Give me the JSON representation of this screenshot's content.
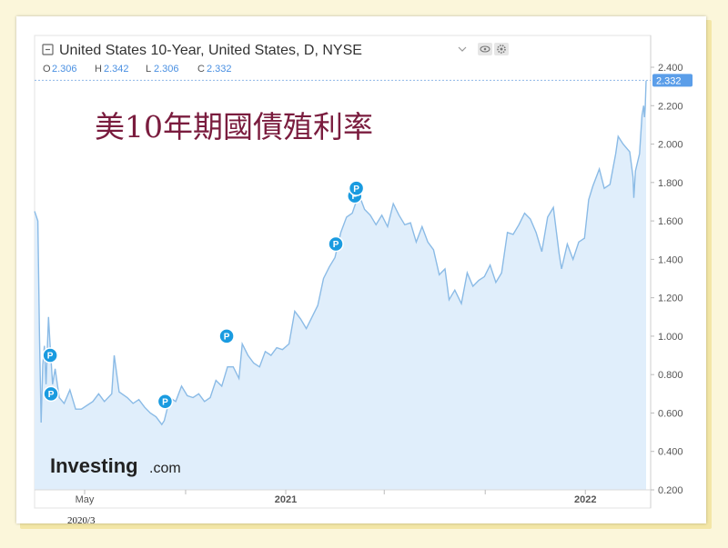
{
  "chart_data": {
    "type": "area",
    "title": "United States 10-Year, United States, D, NYSE",
    "overlay_title": "美10年期國債殖利率",
    "ohlc": {
      "o_label": "O",
      "o_value": "2.306",
      "h_label": "H",
      "h_value": "2.342",
      "l_label": "L",
      "l_value": "2.306",
      "c_label": "C",
      "c_value": "2.332"
    },
    "last_price_label": "2.332",
    "x_tick_labels": [
      "May",
      "2021",
      "2022"
    ],
    "y_tick_labels": [
      "2.400",
      "2.200",
      "2.000",
      "1.800",
      "1.600",
      "1.400",
      "1.200",
      "1.000",
      "0.800",
      "0.600",
      "0.400",
      "0.200"
    ],
    "ylim": [
      0.2,
      2.4
    ],
    "xlim": [
      "2020-03-01",
      "2022-03-16"
    ],
    "grid": false,
    "series": [
      {
        "values": [
          [
            "2020-03-01",
            1.65
          ],
          [
            "2020-03-05",
            1.6
          ],
          [
            "2020-03-07",
            1.0
          ],
          [
            "2020-03-09",
            0.55
          ],
          [
            "2020-03-11",
            0.85
          ],
          [
            "2020-03-13",
            0.95
          ],
          [
            "2020-03-15",
            0.75
          ],
          [
            "2020-03-18",
            1.1
          ],
          [
            "2020-03-20",
            0.95
          ],
          [
            "2020-03-23",
            0.75
          ],
          [
            "2020-03-26",
            0.83
          ],
          [
            "2020-03-31",
            0.68
          ],
          [
            "2020-04-06",
            0.65
          ],
          [
            "2020-04-13",
            0.72
          ],
          [
            "2020-04-20",
            0.62
          ],
          [
            "2020-04-27",
            0.62
          ],
          [
            "2020-05-04",
            0.64
          ],
          [
            "2020-05-11",
            0.66
          ],
          [
            "2020-05-18",
            0.7
          ],
          [
            "2020-05-25",
            0.66
          ],
          [
            "2020-06-03",
            0.7
          ],
          [
            "2020-06-06",
            0.9
          ],
          [
            "2020-06-12",
            0.71
          ],
          [
            "2020-06-22",
            0.68
          ],
          [
            "2020-06-29",
            0.65
          ],
          [
            "2020-07-06",
            0.67
          ],
          [
            "2020-07-13",
            0.63
          ],
          [
            "2020-07-20",
            0.6
          ],
          [
            "2020-07-27",
            0.58
          ],
          [
            "2020-08-03",
            0.54
          ],
          [
            "2020-08-06",
            0.56
          ],
          [
            "2020-08-13",
            0.68
          ],
          [
            "2020-08-20",
            0.66
          ],
          [
            "2020-08-27",
            0.74
          ],
          [
            "2020-09-03",
            0.69
          ],
          [
            "2020-09-10",
            0.68
          ],
          [
            "2020-09-17",
            0.7
          ],
          [
            "2020-09-24",
            0.66
          ],
          [
            "2020-10-01",
            0.68
          ],
          [
            "2020-10-08",
            0.77
          ],
          [
            "2020-10-15",
            0.74
          ],
          [
            "2020-10-22",
            0.84
          ],
          [
            "2020-10-29",
            0.84
          ],
          [
            "2020-11-05",
            0.78
          ],
          [
            "2020-11-09",
            0.96
          ],
          [
            "2020-11-16",
            0.9
          ],
          [
            "2020-11-23",
            0.86
          ],
          [
            "2020-11-30",
            0.84
          ],
          [
            "2020-12-07",
            0.92
          ],
          [
            "2020-12-14",
            0.9
          ],
          [
            "2020-12-21",
            0.94
          ],
          [
            "2020-12-28",
            0.93
          ],
          [
            "2021-01-05",
            0.96
          ],
          [
            "2021-01-12",
            1.13
          ],
          [
            "2021-01-19",
            1.09
          ],
          [
            "2021-01-26",
            1.04
          ],
          [
            "2021-02-02",
            1.1
          ],
          [
            "2021-02-09",
            1.16
          ],
          [
            "2021-02-16",
            1.3
          ],
          [
            "2021-02-23",
            1.36
          ],
          [
            "2021-03-02",
            1.41
          ],
          [
            "2021-03-09",
            1.54
          ],
          [
            "2021-03-16",
            1.62
          ],
          [
            "2021-03-23",
            1.64
          ],
          [
            "2021-03-31",
            1.74
          ],
          [
            "2021-04-07",
            1.66
          ],
          [
            "2021-04-14",
            1.63
          ],
          [
            "2021-04-21",
            1.58
          ],
          [
            "2021-04-28",
            1.63
          ],
          [
            "2021-05-05",
            1.57
          ],
          [
            "2021-05-12",
            1.69
          ],
          [
            "2021-05-19",
            1.63
          ],
          [
            "2021-05-26",
            1.58
          ],
          [
            "2021-06-02",
            1.59
          ],
          [
            "2021-06-09",
            1.49
          ],
          [
            "2021-06-16",
            1.57
          ],
          [
            "2021-06-23",
            1.49
          ],
          [
            "2021-06-30",
            1.45
          ],
          [
            "2021-07-07",
            1.32
          ],
          [
            "2021-07-14",
            1.35
          ],
          [
            "2021-07-19",
            1.19
          ],
          [
            "2021-07-26",
            1.24
          ],
          [
            "2021-08-03",
            1.17
          ],
          [
            "2021-08-10",
            1.33
          ],
          [
            "2021-08-17",
            1.26
          ],
          [
            "2021-08-24",
            1.29
          ],
          [
            "2021-08-31",
            1.31
          ],
          [
            "2021-09-07",
            1.37
          ],
          [
            "2021-09-14",
            1.28
          ],
          [
            "2021-09-21",
            1.33
          ],
          [
            "2021-09-28",
            1.54
          ],
          [
            "2021-10-05",
            1.53
          ],
          [
            "2021-10-12",
            1.58
          ],
          [
            "2021-10-19",
            1.64
          ],
          [
            "2021-10-26",
            1.61
          ],
          [
            "2021-11-02",
            1.54
          ],
          [
            "2021-11-09",
            1.44
          ],
          [
            "2021-11-16",
            1.62
          ],
          [
            "2021-11-23",
            1.67
          ],
          [
            "2021-11-30",
            1.43
          ],
          [
            "2021-12-03",
            1.35
          ],
          [
            "2021-12-10",
            1.48
          ],
          [
            "2021-12-17",
            1.4
          ],
          [
            "2021-12-24",
            1.49
          ],
          [
            "2021-12-31",
            1.51
          ],
          [
            "2022-01-05",
            1.71
          ],
          [
            "2022-01-10",
            1.78
          ],
          [
            "2022-01-18",
            1.87
          ],
          [
            "2022-01-24",
            1.77
          ],
          [
            "2022-01-31",
            1.79
          ],
          [
            "2022-02-07",
            1.95
          ],
          [
            "2022-02-10",
            2.04
          ],
          [
            "2022-02-16",
            2.0
          ],
          [
            "2022-02-24",
            1.96
          ],
          [
            "2022-02-28",
            1.83
          ],
          [
            "2022-03-01",
            1.72
          ],
          [
            "2022-03-03",
            1.86
          ],
          [
            "2022-03-08",
            1.95
          ],
          [
            "2022-03-11",
            2.15
          ],
          [
            "2022-03-13",
            2.2
          ],
          [
            "2022-03-14",
            2.14
          ],
          [
            "2022-03-15",
            2.2
          ],
          [
            "2022-03-16",
            2.33
          ]
        ]
      }
    ],
    "markers": [
      {
        "date": "2020-03-20",
        "value": 0.9,
        "label": "P"
      },
      {
        "date": "2020-03-21",
        "value": 0.7,
        "label": "P"
      },
      {
        "date": "2020-08-07",
        "value": 0.66,
        "label": "P"
      },
      {
        "date": "2020-10-21",
        "value": 1.0,
        "label": "P"
      },
      {
        "date": "2021-03-03",
        "value": 1.48,
        "label": "P"
      },
      {
        "date": "2021-03-26",
        "value": 1.73,
        "label": "P"
      },
      {
        "date": "2021-03-28",
        "value": 1.77,
        "label": "P"
      }
    ],
    "colors": {
      "line": "#8bbbe6",
      "fill": "#e0eefb",
      "marker": "#1a9be0",
      "price_tag": "#5b9ee9",
      "title_text": "#7a1c3e",
      "header_text": "#333333",
      "ohlc_value": "#4a90e2"
    }
  },
  "caption": "2020/3",
  "logo": {
    "brand": "Investing",
    "suffix": ".com"
  },
  "header_icons": [
    "eye-icon",
    "gear-icon",
    "chevron-down-icon"
  ]
}
